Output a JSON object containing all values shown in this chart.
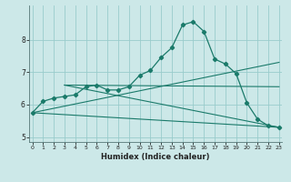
{
  "title": "",
  "xlabel": "Humidex (Indice chaleur)",
  "bg_color": "#cce8e8",
  "grid_color": "#99cccc",
  "line_color": "#1a7a6a",
  "main_series": {
    "x": [
      0,
      1,
      2,
      3,
      4,
      5,
      6,
      7,
      8,
      9,
      10,
      11,
      12,
      13,
      14,
      15,
      16,
      17,
      18,
      19,
      20,
      21,
      22,
      23
    ],
    "y": [
      5.75,
      6.1,
      6.2,
      6.25,
      6.3,
      6.55,
      6.6,
      6.45,
      6.45,
      6.55,
      6.9,
      7.05,
      7.45,
      7.75,
      8.45,
      8.55,
      8.25,
      7.4,
      7.25,
      6.95,
      6.05,
      5.55,
      5.35,
      5.3
    ]
  },
  "trend_lines": [
    {
      "x": [
        0,
        23
      ],
      "y": [
        5.75,
        5.3
      ]
    },
    {
      "x": [
        0,
        23
      ],
      "y": [
        5.75,
        7.3
      ]
    },
    {
      "x": [
        3,
        23
      ],
      "y": [
        6.6,
        6.55
      ]
    },
    {
      "x": [
        3,
        23
      ],
      "y": [
        6.6,
        5.3
      ]
    }
  ],
  "xlim": [
    0,
    23
  ],
  "ylim": [
    4.85,
    9.05
  ],
  "yticks": [
    5,
    6,
    7,
    8
  ],
  "xticks": [
    0,
    1,
    2,
    3,
    4,
    5,
    6,
    7,
    8,
    9,
    10,
    11,
    12,
    13,
    14,
    15,
    16,
    17,
    18,
    19,
    20,
    21,
    22,
    23
  ]
}
